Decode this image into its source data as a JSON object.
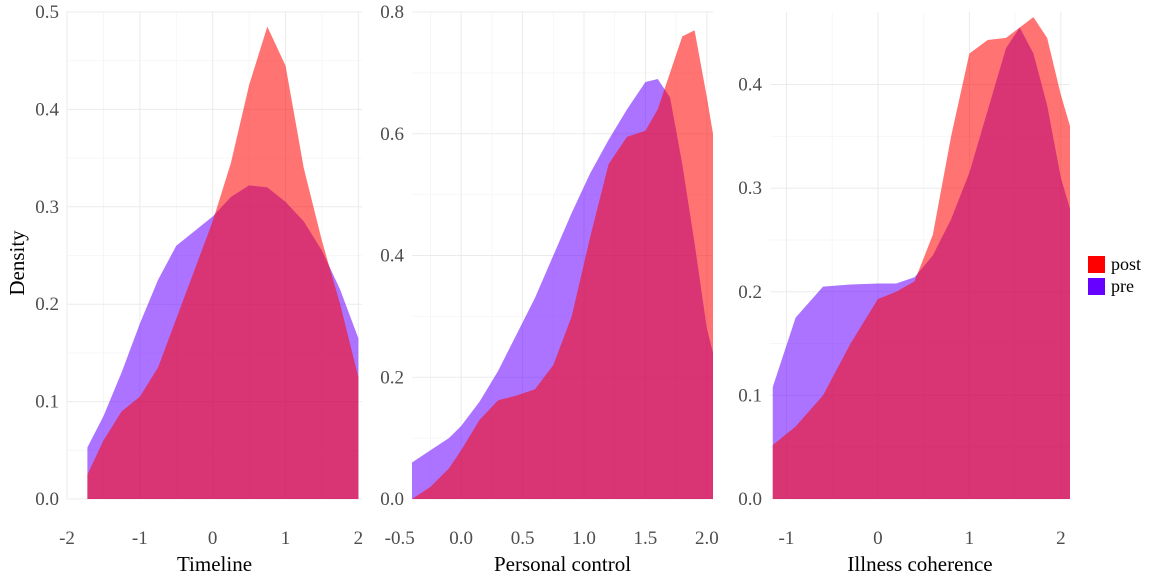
{
  "colors": {
    "post": "#ff0000",
    "pre": "#6600ff",
    "fill_alpha": 0.55,
    "grid": "#ebebeb"
  },
  "chart_data": [
    {
      "type": "area",
      "ylabel": "Density",
      "xlabel": "Timeline",
      "xlim": [
        -2,
        2.05
      ],
      "ylim": [
        0,
        0.5
      ],
      "x_ticks": [
        -2,
        -1,
        0,
        1,
        2
      ],
      "x_tick_labels": [
        "-2",
        "-1",
        "0",
        "1",
        "2"
      ],
      "y_ticks": [
        0.0,
        0.1,
        0.2,
        0.3,
        0.4,
        0.5
      ],
      "y_tick_labels": [
        "0.0",
        "0.1",
        "0.2",
        "0.3",
        "0.4",
        "0.5"
      ],
      "grid": true,
      "series": [
        {
          "name": "post",
          "x": [
            -1.72,
            -1.5,
            -1.25,
            -1.0,
            -0.75,
            -0.5,
            -0.25,
            0.0,
            0.25,
            0.5,
            0.75,
            1.0,
            1.25,
            1.5,
            1.75,
            2.0
          ],
          "y": [
            0.025,
            0.06,
            0.09,
            0.105,
            0.135,
            0.185,
            0.235,
            0.285,
            0.345,
            0.425,
            0.485,
            0.445,
            0.34,
            0.265,
            0.2,
            0.125
          ]
        },
        {
          "name": "pre",
          "x": [
            -1.72,
            -1.5,
            -1.25,
            -1.0,
            -0.75,
            -0.5,
            -0.25,
            0.0,
            0.25,
            0.5,
            0.75,
            1.0,
            1.25,
            1.5,
            1.75,
            2.0
          ],
          "y": [
            0.053,
            0.085,
            0.13,
            0.18,
            0.225,
            0.26,
            0.275,
            0.29,
            0.31,
            0.322,
            0.32,
            0.305,
            0.285,
            0.255,
            0.215,
            0.165
          ]
        }
      ]
    },
    {
      "type": "area",
      "xlabel": "Personal control",
      "xlim": [
        -0.4,
        2.05
      ],
      "ylim": [
        0,
        0.8
      ],
      "x_ticks": [
        -0.5,
        0.0,
        0.5,
        1.0,
        1.5,
        2.0
      ],
      "x_tick_labels": [
        "-0.5",
        "0.0",
        "0.5",
        "1.0",
        "1.5",
        "2.0"
      ],
      "y_ticks": [
        0.0,
        0.2,
        0.4,
        0.6,
        0.8
      ],
      "y_tick_labels": [
        "0.0",
        "0.2",
        "0.4",
        "0.6",
        "0.8"
      ],
      "grid": true,
      "series": [
        {
          "name": "post",
          "x": [
            -0.4,
            -0.25,
            -0.1,
            0.0,
            0.15,
            0.3,
            0.45,
            0.6,
            0.75,
            0.9,
            1.05,
            1.2,
            1.35,
            1.5,
            1.6,
            1.7,
            1.8,
            1.9,
            2.0,
            2.05
          ],
          "y": [
            0.0,
            0.02,
            0.05,
            0.08,
            0.13,
            0.162,
            0.17,
            0.18,
            0.22,
            0.3,
            0.43,
            0.55,
            0.595,
            0.605,
            0.64,
            0.7,
            0.76,
            0.77,
            0.66,
            0.6
          ]
        },
        {
          "name": "pre",
          "x": [
            -0.4,
            -0.25,
            -0.1,
            0.0,
            0.15,
            0.3,
            0.45,
            0.6,
            0.75,
            0.9,
            1.05,
            1.2,
            1.35,
            1.5,
            1.6,
            1.7,
            1.8,
            1.9,
            2.0,
            2.05
          ],
          "y": [
            0.06,
            0.08,
            0.1,
            0.12,
            0.16,
            0.21,
            0.27,
            0.33,
            0.4,
            0.47,
            0.535,
            0.59,
            0.64,
            0.685,
            0.69,
            0.66,
            0.55,
            0.42,
            0.28,
            0.24
          ]
        }
      ]
    },
    {
      "type": "area",
      "xlabel": "Illness coherence",
      "xlim": [
        -1.18,
        2.1
      ],
      "ylim": [
        0,
        0.47
      ],
      "x_ticks": [
        -1,
        0,
        1,
        2
      ],
      "x_tick_labels": [
        "-1",
        "0",
        "1",
        "2"
      ],
      "y_ticks": [
        0.0,
        0.1,
        0.2,
        0.3,
        0.4
      ],
      "y_tick_labels": [
        "0.0",
        "0.1",
        "0.2",
        "0.3",
        "0.4"
      ],
      "grid": true,
      "series": [
        {
          "name": "post",
          "x": [
            -1.15,
            -0.9,
            -0.6,
            -0.3,
            0.0,
            0.2,
            0.4,
            0.6,
            0.8,
            1.0,
            1.2,
            1.4,
            1.55,
            1.7,
            1.85,
            2.0,
            2.1
          ],
          "y": [
            0.052,
            0.07,
            0.1,
            0.15,
            0.193,
            0.2,
            0.21,
            0.255,
            0.35,
            0.43,
            0.443,
            0.445,
            0.455,
            0.465,
            0.445,
            0.39,
            0.36
          ]
        },
        {
          "name": "pre",
          "x": [
            -1.15,
            -0.9,
            -0.6,
            -0.3,
            0.0,
            0.2,
            0.4,
            0.6,
            0.8,
            1.0,
            1.2,
            1.4,
            1.55,
            1.7,
            1.85,
            2.0,
            2.1
          ],
          "y": [
            0.108,
            0.175,
            0.205,
            0.207,
            0.208,
            0.208,
            0.214,
            0.235,
            0.27,
            0.315,
            0.375,
            0.435,
            0.455,
            0.43,
            0.38,
            0.31,
            0.28
          ]
        }
      ]
    }
  ],
  "legend": {
    "position": "right",
    "items": [
      {
        "label": "post",
        "color": "#ff0000"
      },
      {
        "label": "pre",
        "color": "#6600ff"
      }
    ]
  }
}
